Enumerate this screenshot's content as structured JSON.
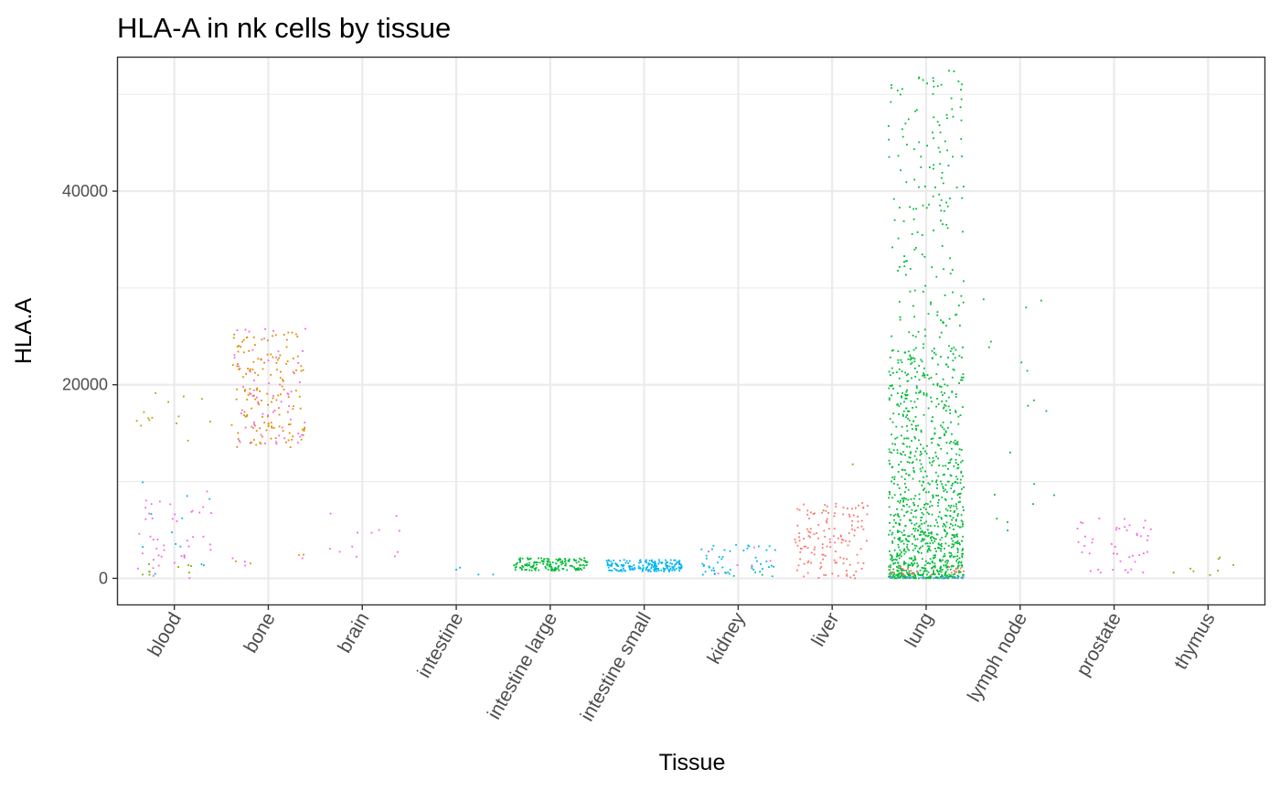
{
  "chart_data": {
    "type": "scatter",
    "title": "HLA-A in nk cells by tissue",
    "xlabel": "Tissue",
    "ylabel": "HLA.A",
    "categories": [
      "blood",
      "bone",
      "brain",
      "intestine",
      "intestine large",
      "intestine small",
      "kidney",
      "liver",
      "lung",
      "lymph node",
      "prostate",
      "thymus"
    ],
    "ylim": [
      -2700,
      53800
    ],
    "yticks": [
      0,
      20000,
      40000
    ],
    "ytick_labels": [
      "0",
      "20000",
      "40000"
    ],
    "grid": true,
    "legend": "none",
    "jitter": "strip plot, points jittered horizontally within each tissue",
    "colors": {
      "red": "#F8766D",
      "orange": "#DE8C00",
      "green": "#00BA38",
      "teal": "#00C08B",
      "cyan": "#00B4F0",
      "blue": "#619CFF",
      "magenta": "#F564E3",
      "olive": "#7CAE00",
      "gold": "#B79F00"
    },
    "groups": [
      {
        "category": "blood",
        "color": "magenta",
        "n": 45,
        "ymin": 0,
        "ymax": 9000
      },
      {
        "category": "blood",
        "color": "cyan",
        "n": 12,
        "ymin": 0,
        "ymax": 10000
      },
      {
        "category": "blood",
        "color": "gold",
        "n": 14,
        "ymin": 14000,
        "ymax": 19200
      },
      {
        "category": "blood",
        "color": "olive",
        "n": 8,
        "ymin": 200,
        "ymax": 1500
      },
      {
        "category": "bone",
        "color": "orange",
        "n": 150,
        "ymin": 13500,
        "ymax": 25500
      },
      {
        "category": "bone",
        "color": "magenta",
        "n": 60,
        "ymin": 13800,
        "ymax": 25800
      },
      {
        "category": "bone",
        "color": "orange",
        "n": 4,
        "ymin": 1500,
        "ymax": 2600
      },
      {
        "category": "bone",
        "color": "magenta",
        "n": 4,
        "ymin": 1300,
        "ymax": 2400
      },
      {
        "category": "brain",
        "color": "magenta",
        "n": 12,
        "ymin": 2000,
        "ymax": 6800
      },
      {
        "category": "intestine",
        "color": "cyan",
        "n": 4,
        "ymin": 0,
        "ymax": 1500
      },
      {
        "category": "intestine large",
        "color": "green",
        "n": 160,
        "ymin": 800,
        "ymax": 2100
      },
      {
        "category": "intestine small",
        "color": "cyan",
        "n": 180,
        "ymin": 700,
        "ymax": 1900
      },
      {
        "category": "kidney",
        "color": "cyan",
        "n": 45,
        "ymin": 0,
        "ymax": 3600
      },
      {
        "category": "kidney",
        "color": "teal",
        "n": 10,
        "ymin": 0,
        "ymax": 2000
      },
      {
        "category": "kidney",
        "color": "magenta",
        "n": 6,
        "ymin": 200,
        "ymax": 3500
      },
      {
        "category": "liver",
        "color": "red",
        "n": 140,
        "ymin": 0,
        "ymax": 7800
      },
      {
        "category": "liver",
        "color": "olive",
        "n": 2,
        "ymin": 5000,
        "ymax": 13200
      },
      {
        "category": "lung",
        "color": "green",
        "n": 1200,
        "ymin": 0,
        "ymax": 52500
      },
      {
        "category": "lung",
        "color": "blue",
        "n": 30,
        "ymin": 0,
        "ymax": 150
      },
      {
        "category": "lung",
        "color": "red",
        "n": 25,
        "ymin": 300,
        "ymax": 1200
      },
      {
        "category": "lymph node",
        "color": "green",
        "n": 18,
        "ymin": 1000,
        "ymax": 29600
      },
      {
        "category": "prostate",
        "color": "magenta",
        "n": 45,
        "ymin": 500,
        "ymax": 6200
      },
      {
        "category": "thymus",
        "color": "olive",
        "n": 8,
        "ymin": 200,
        "ymax": 2200
      }
    ]
  }
}
